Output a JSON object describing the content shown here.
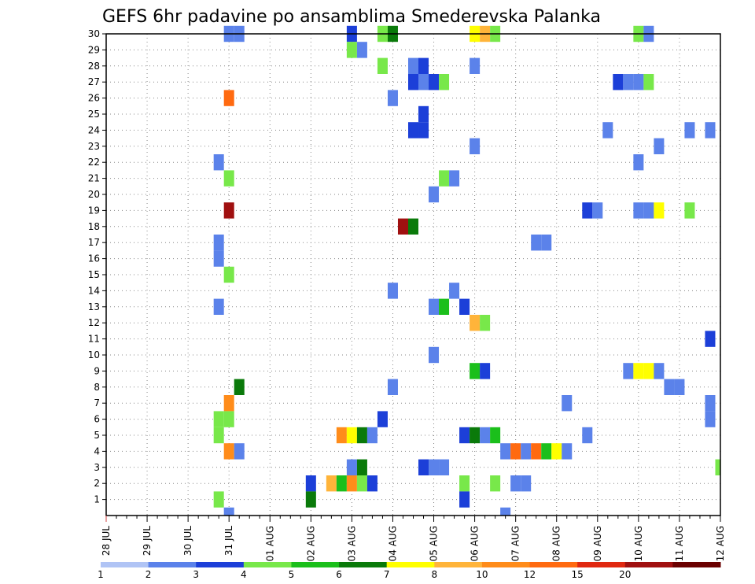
{
  "chart_data": {
    "type": "heatmap",
    "title": "GEFS 6hr padavine po ansamblima Smederevska Palanka",
    "x_tick_labels": [
      "28 JUL",
      "29 JUL",
      "30 JUL",
      "31 JUL",
      "01 AUG",
      "02 AUG",
      "03 AUG",
      "04 AUG",
      "05 AUG",
      "06 AUG",
      "07 AUG",
      "08 AUG",
      "09 AUG",
      "10 AUG",
      "11 AUG",
      "12 AUG"
    ],
    "x_unit": "6-hour step since 28 JUL 00Z",
    "y_tick_labels": [
      "1",
      "2",
      "3",
      "4",
      "5",
      "6",
      "7",
      "8",
      "9",
      "10",
      "11",
      "12",
      "13",
      "14",
      "15",
      "16",
      "17",
      "18",
      "19",
      "20",
      "21",
      "22",
      "23",
      "24",
      "25",
      "26",
      "27",
      "28",
      "29",
      "30"
    ],
    "xlim": [
      0,
      60
    ],
    "ylim": [
      0,
      30
    ],
    "grid": true,
    "colorbar": {
      "labels": [
        "1",
        "2",
        "3",
        "4",
        "5",
        "6",
        "7",
        "8",
        "10",
        "12",
        "15",
        "20"
      ],
      "colors": [
        "#b0c4f5",
        "#5b82ea",
        "#1c3fd8",
        "#78e84a",
        "#1bbf1b",
        "#0a7a0a",
        "#ffff00",
        "#ffb43a",
        "#ff8c1a",
        "#ff6a10",
        "#e02810",
        "#a01010",
        "#6a0000"
      ]
    },
    "cells": [
      [
        12,
        30,
        1
      ],
      [
        13,
        30,
        1
      ],
      [
        24,
        30,
        2
      ],
      [
        27,
        30,
        3
      ],
      [
        28,
        30,
        5
      ],
      [
        36,
        30,
        6
      ],
      [
        37,
        30,
        7
      ],
      [
        38,
        30,
        3
      ],
      [
        52,
        30,
        3
      ],
      [
        53,
        30,
        1
      ],
      [
        24,
        29,
        3
      ],
      [
        25,
        29,
        1
      ],
      [
        27,
        28,
        3
      ],
      [
        30,
        28,
        1
      ],
      [
        31,
        28,
        2
      ],
      [
        36,
        28,
        1
      ],
      [
        30,
        27,
        2
      ],
      [
        31,
        27,
        1
      ],
      [
        32,
        27,
        2
      ],
      [
        33,
        27,
        3
      ],
      [
        50,
        27,
        2
      ],
      [
        51,
        27,
        1
      ],
      [
        52,
        27,
        1
      ],
      [
        53,
        27,
        3
      ],
      [
        12,
        26,
        9
      ],
      [
        28,
        26,
        1
      ],
      [
        31,
        25,
        2
      ],
      [
        30,
        24,
        2
      ],
      [
        31,
        24,
        2
      ],
      [
        49,
        24,
        1
      ],
      [
        57,
        24,
        1
      ],
      [
        59,
        24,
        1
      ],
      [
        36,
        23,
        1
      ],
      [
        54,
        23,
        1
      ],
      [
        11,
        22,
        1
      ],
      [
        52,
        22,
        1
      ],
      [
        12,
        21,
        3
      ],
      [
        33,
        21,
        3
      ],
      [
        34,
        21,
        1
      ],
      [
        32,
        20,
        1
      ],
      [
        12,
        19,
        11
      ],
      [
        47,
        19,
        2
      ],
      [
        48,
        19,
        1
      ],
      [
        52,
        19,
        1
      ],
      [
        53,
        19,
        1
      ],
      [
        54,
        19,
        6
      ],
      [
        57,
        19,
        3
      ],
      [
        29,
        18,
        11
      ],
      [
        30,
        18,
        5
      ],
      [
        11,
        17,
        1
      ],
      [
        42,
        17,
        1
      ],
      [
        43,
        17,
        1
      ],
      [
        11,
        16,
        1
      ],
      [
        12,
        15,
        3
      ],
      [
        28,
        14,
        1
      ],
      [
        34,
        14,
        1
      ],
      [
        11,
        13,
        1
      ],
      [
        32,
        13,
        1
      ],
      [
        33,
        13,
        4
      ],
      [
        35,
        13,
        2
      ],
      [
        36,
        12,
        7
      ],
      [
        37,
        12,
        3
      ],
      [
        59,
        11,
        2
      ],
      [
        32,
        10,
        1
      ],
      [
        36,
        9,
        4
      ],
      [
        37,
        9,
        2
      ],
      [
        51,
        9,
        1
      ],
      [
        52,
        9,
        6
      ],
      [
        53,
        9,
        6
      ],
      [
        54,
        9,
        1
      ],
      [
        13,
        8,
        5
      ],
      [
        28,
        8,
        1
      ],
      [
        55,
        8,
        1
      ],
      [
        56,
        8,
        1
      ],
      [
        12,
        7,
        8
      ],
      [
        45,
        7,
        1
      ],
      [
        59,
        7,
        1
      ],
      [
        11,
        6,
        3
      ],
      [
        12,
        6,
        3
      ],
      [
        27,
        6,
        2
      ],
      [
        59,
        6,
        1
      ],
      [
        11,
        5,
        3
      ],
      [
        23,
        5,
        8
      ],
      [
        24,
        5,
        6
      ],
      [
        25,
        5,
        5
      ],
      [
        26,
        5,
        1
      ],
      [
        35,
        5,
        2
      ],
      [
        36,
        5,
        5
      ],
      [
        37,
        5,
        1
      ],
      [
        38,
        5,
        4
      ],
      [
        47,
        5,
        1
      ],
      [
        12,
        4,
        8
      ],
      [
        13,
        4,
        1
      ],
      [
        39,
        4,
        1
      ],
      [
        40,
        4,
        9
      ],
      [
        41,
        4,
        1
      ],
      [
        42,
        4,
        9
      ],
      [
        43,
        4,
        4
      ],
      [
        44,
        4,
        6
      ],
      [
        45,
        4,
        1
      ],
      [
        24,
        3,
        1
      ],
      [
        25,
        3,
        5
      ],
      [
        31,
        3,
        2
      ],
      [
        32,
        3,
        1
      ],
      [
        33,
        3,
        1
      ],
      [
        60,
        3,
        3
      ],
      [
        20,
        2,
        2
      ],
      [
        22,
        2,
        7
      ],
      [
        23,
        2,
        4
      ],
      [
        24,
        2,
        8
      ],
      [
        25,
        2,
        3
      ],
      [
        26,
        2,
        2
      ],
      [
        35,
        2,
        3
      ],
      [
        38,
        2,
        3
      ],
      [
        40,
        2,
        1
      ],
      [
        41,
        2,
        1
      ],
      [
        11,
        1,
        3
      ],
      [
        20,
        1,
        5
      ],
      [
        35,
        1,
        2
      ],
      [
        12,
        0,
        1
      ],
      [
        39,
        0,
        1
      ]
    ]
  }
}
